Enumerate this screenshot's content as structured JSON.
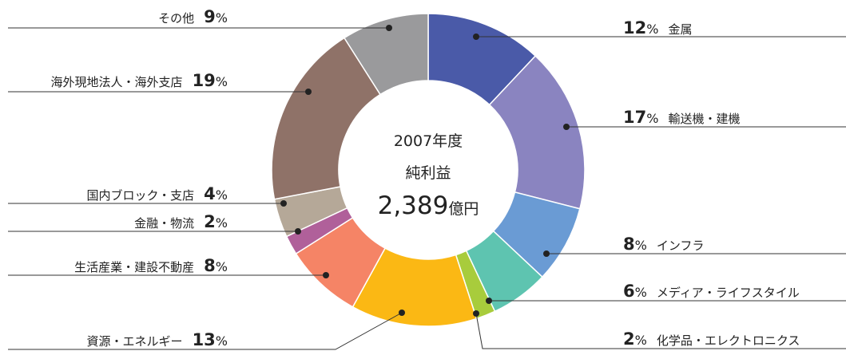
{
  "chart_data": {
    "type": "donut",
    "center_title": "2007年度",
    "center_subtitle": "純利益",
    "total": {
      "value": 2389,
      "label": "2,389"
    },
    "total_unit": "億円",
    "unit": "%",
    "categories": [
      "金属",
      "輸送機・建機",
      "インフラ",
      "メディア・ライフスタイル",
      "化学品・エレクトロニクス",
      "資源・エネルギー",
      "生活産業・建設不動産",
      "金融・物流",
      "国内ブロック・支店",
      "海外現地法人・海外支店",
      "その他"
    ],
    "values": [
      12,
      17,
      8,
      6,
      2,
      13,
      8,
      2,
      4,
      19,
      9
    ],
    "colors": [
      "#4a5aa8",
      "#8a84c0",
      "#6a9bd4",
      "#5ec4b0",
      "#a8cc3c",
      "#fbb814",
      "#f58466",
      "#b0609a",
      "#b5a898",
      "#8f7268",
      "#9a9a9c"
    ]
  }
}
